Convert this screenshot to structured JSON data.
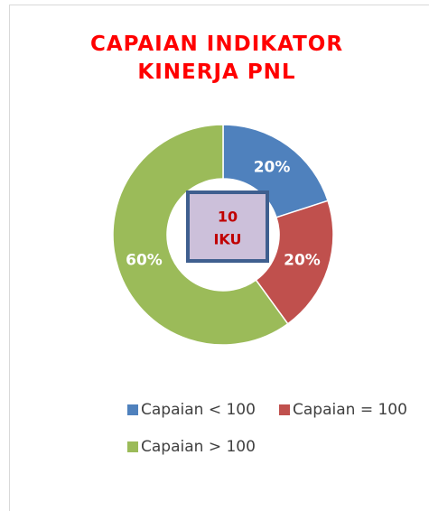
{
  "chart_data": {
    "type": "donut",
    "title": "CAPAIAN INDIKATOR KINERJA PNL",
    "center_text": [
      "10",
      "IKU"
    ],
    "categories": [
      "Capaian < 100",
      "Capaian = 100",
      "Capaian > 100"
    ],
    "values": [
      20,
      20,
      60
    ],
    "value_labels": [
      "20%",
      "20%",
      "60%"
    ],
    "colors": [
      "#4f81bd",
      "#c0504d",
      "#9bbb59"
    ],
    "legend": "bottom"
  }
}
